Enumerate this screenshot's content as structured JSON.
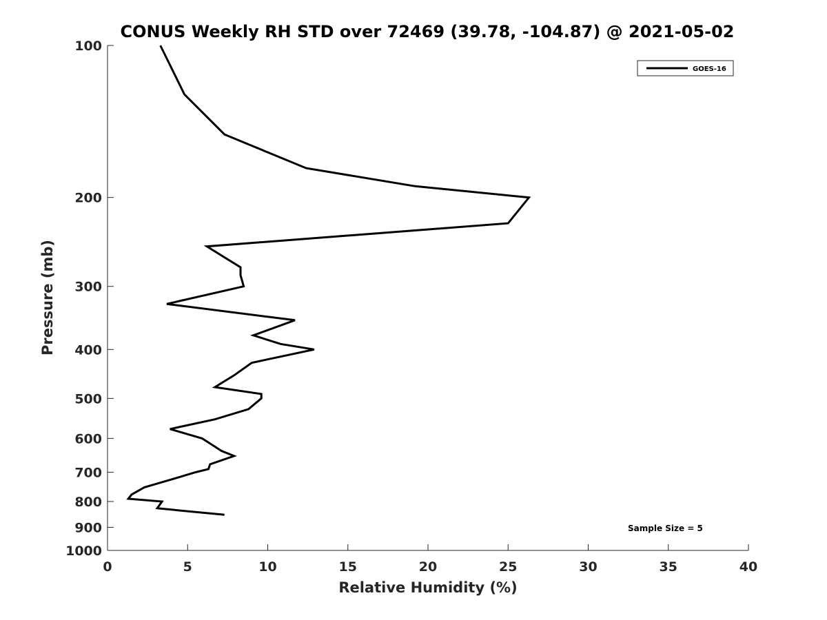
{
  "chart_data": {
    "type": "line",
    "title": "CONUS Weekly RH STD over 72469 (39.78, -104.87) @ 2021-05-02",
    "xlabel": "Relative Humidity (%)",
    "ylabel": "Pressure (mb)",
    "xlim": [
      0,
      40
    ],
    "ylim": [
      100,
      1000
    ],
    "y_scale": "log",
    "y_reversed": true,
    "grid": false,
    "legend_position": "top-right",
    "x_ticks": [
      "0",
      "5",
      "10",
      "15",
      "20",
      "25",
      "30",
      "35",
      "40"
    ],
    "y_ticks": [
      "100",
      "200",
      "300",
      "400",
      "500",
      "600",
      "700",
      "800",
      "900",
      "1000"
    ],
    "series": [
      {
        "name": "GOES-16",
        "color": "#000000",
        "points": [
          {
            "x": 3.3,
            "y": 100
          },
          {
            "x": 4.8,
            "y": 125
          },
          {
            "x": 7.3,
            "y": 150
          },
          {
            "x": 12.4,
            "y": 175
          },
          {
            "x": 19.2,
            "y": 190
          },
          {
            "x": 26.3,
            "y": 200
          },
          {
            "x": 25.0,
            "y": 225
          },
          {
            "x": 6.2,
            "y": 250
          },
          {
            "x": 8.3,
            "y": 275
          },
          {
            "x": 8.3,
            "y": 285
          },
          {
            "x": 8.5,
            "y": 300
          },
          {
            "x": 3.7,
            "y": 325
          },
          {
            "x": 11.7,
            "y": 350
          },
          {
            "x": 9.1,
            "y": 375
          },
          {
            "x": 10.8,
            "y": 390
          },
          {
            "x": 12.9,
            "y": 400
          },
          {
            "x": 9.0,
            "y": 425
          },
          {
            "x": 7.9,
            "y": 450
          },
          {
            "x": 6.7,
            "y": 475
          },
          {
            "x": 9.6,
            "y": 490
          },
          {
            "x": 9.6,
            "y": 500
          },
          {
            "x": 8.8,
            "y": 525
          },
          {
            "x": 6.7,
            "y": 550
          },
          {
            "x": 3.9,
            "y": 575
          },
          {
            "x": 5.9,
            "y": 600
          },
          {
            "x": 6.6,
            "y": 620
          },
          {
            "x": 7.1,
            "y": 635
          },
          {
            "x": 7.9,
            "y": 650
          },
          {
            "x": 6.4,
            "y": 675
          },
          {
            "x": 6.3,
            "y": 690
          },
          {
            "x": 5.5,
            "y": 700
          },
          {
            "x": 3.9,
            "y": 725
          },
          {
            "x": 2.3,
            "y": 750
          },
          {
            "x": 1.5,
            "y": 775
          },
          {
            "x": 1.3,
            "y": 790
          },
          {
            "x": 3.4,
            "y": 800
          },
          {
            "x": 3.1,
            "y": 825
          },
          {
            "x": 7.3,
            "y": 850
          }
        ]
      }
    ],
    "annotations": [
      "Sample Size = 5"
    ]
  }
}
